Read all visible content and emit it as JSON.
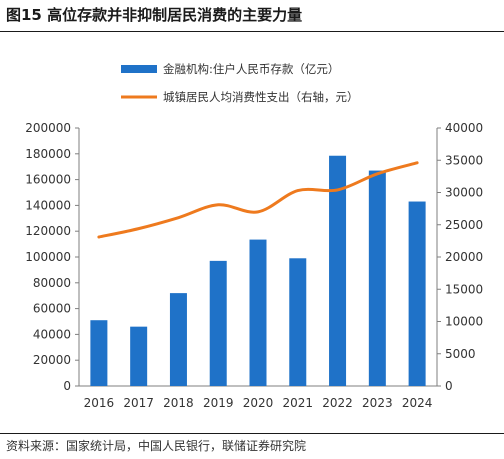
{
  "figure": {
    "title": "图15 高位存款并非抑制居民消费的主要力量",
    "source": "资料来源：国家统计局，中国人民银行，联储证券研究院"
  },
  "colors": {
    "bar": "#1f72c8",
    "line": "#ee7a1e",
    "axis": "#7f7f7f",
    "text": "#333333"
  },
  "chart_data": {
    "type": "bar+line",
    "categories": [
      "2016",
      "2017",
      "2018",
      "2019",
      "2020",
      "2021",
      "2022",
      "2023",
      "2024"
    ],
    "series": [
      {
        "name": "金融机构:住户人民币存款（亿元）",
        "type": "bar",
        "axis": "left",
        "values": [
          51000,
          46000,
          72000,
          97000,
          113500,
          99000,
          178500,
          167000,
          143000
        ]
      },
      {
        "name": "城镇居民人均消费性支出（右轴，元）",
        "type": "line",
        "axis": "right",
        "values": [
          23100,
          24400,
          26100,
          28100,
          27000,
          30300,
          30400,
          32900,
          34600
        ]
      }
    ],
    "y_left": {
      "min": 0,
      "max": 200000,
      "ticks": [
        "0",
        "20000",
        "40000",
        "60000",
        "80000",
        "100000",
        "120000",
        "140000",
        "160000",
        "180000",
        "200000"
      ]
    },
    "y_right": {
      "min": 0,
      "max": 40000,
      "ticks": [
        "0",
        "5000",
        "10000",
        "15000",
        "20000",
        "25000",
        "30000",
        "35000",
        "40000"
      ]
    },
    "grid": false,
    "legend_position": "top-center"
  }
}
